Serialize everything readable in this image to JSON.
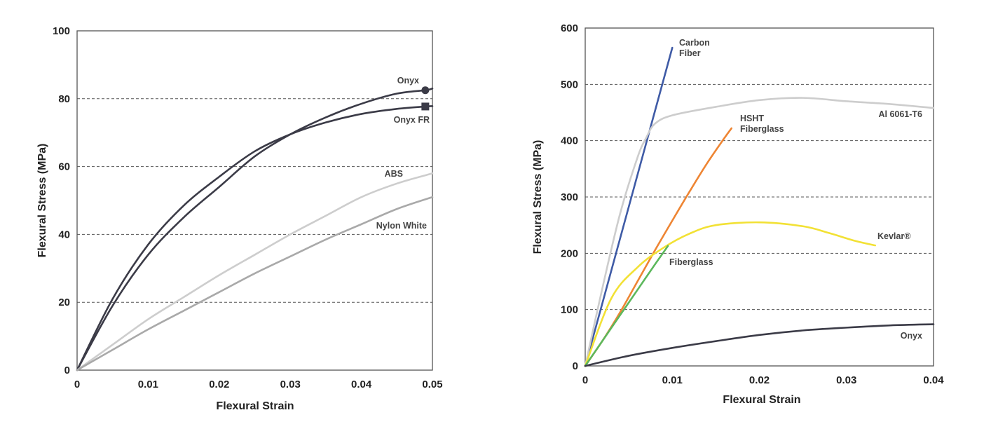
{
  "chart_data": [
    {
      "type": "line",
      "title": "",
      "xlabel": "Flexural Strain",
      "ylabel": "Flexural Stress (MPa)",
      "xlim": [
        0,
        0.05
      ],
      "ylim": [
        0,
        100
      ],
      "xticks": [
        "0",
        "0.01",
        "0.02",
        "0.03",
        "0.04",
        "0.05"
      ],
      "yticks": [
        "0",
        "20",
        "40",
        "60",
        "80",
        "100"
      ],
      "grid": "horizontal dashed",
      "series": [
        {
          "name": "Onyx",
          "color": "#3b3b47",
          "marker": "circle",
          "x": [
            0,
            0.005,
            0.01,
            0.015,
            0.02,
            0.025,
            0.03,
            0.035,
            0.04,
            0.045,
            0.049,
            0.05
          ],
          "y": [
            0,
            19,
            34,
            45,
            54,
            63,
            69.5,
            74.5,
            78.5,
            81.5,
            82.5,
            83
          ]
        },
        {
          "name": "Onyx FR",
          "color": "#3b3b47",
          "marker": "square",
          "x": [
            0,
            0.005,
            0.01,
            0.015,
            0.02,
            0.025,
            0.03,
            0.035,
            0.04,
            0.045,
            0.049,
            0.05
          ],
          "y": [
            0,
            21,
            37,
            48.5,
            57,
            64.5,
            69.5,
            73,
            75.5,
            77,
            77.7,
            77.8
          ]
        },
        {
          "name": "ABS",
          "color": "#cdcdcd",
          "marker": "none",
          "x": [
            0,
            0.005,
            0.01,
            0.015,
            0.02,
            0.025,
            0.03,
            0.035,
            0.04,
            0.045,
            0.05
          ],
          "y": [
            0,
            7.5,
            15,
            21.5,
            28,
            34,
            40,
            45.5,
            51,
            55,
            58
          ]
        },
        {
          "name": "Nylon White",
          "color": "#a9a9a9",
          "marker": "none",
          "x": [
            0,
            0.005,
            0.01,
            0.015,
            0.02,
            0.025,
            0.03,
            0.035,
            0.04,
            0.045,
            0.05
          ],
          "y": [
            0,
            6,
            12,
            17.5,
            23,
            28.5,
            33.5,
            38.5,
            43,
            47.5,
            51
          ]
        }
      ]
    },
    {
      "type": "line",
      "title": "",
      "xlabel": "Flexural Strain",
      "ylabel": "Flexural Stress (MPa)",
      "xlim": [
        0,
        0.04
      ],
      "ylim": [
        0,
        600
      ],
      "xticks": [
        "0",
        "0.01",
        "0.02",
        "0.03",
        "0.04"
      ],
      "yticks": [
        "0",
        "100",
        "200",
        "300",
        "400",
        "500",
        "600"
      ],
      "grid": "horizontal dashed",
      "series": [
        {
          "name": "Carbon Fiber",
          "color": "#3f5ba6",
          "x": [
            0,
            0.002,
            0.004,
            0.006,
            0.008,
            0.01
          ],
          "y": [
            0,
            113,
            226,
            339,
            452,
            565
          ]
        },
        {
          "name": "Al 6061-T6",
          "color": "#cdcdcd",
          "x": [
            0,
            0.002,
            0.004,
            0.006,
            0.007,
            0.008,
            0.01,
            0.015,
            0.02,
            0.025,
            0.03,
            0.035,
            0.04
          ],
          "y": [
            0,
            140,
            270,
            370,
            405,
            430,
            445,
            460,
            472,
            476,
            470,
            465,
            458
          ]
        },
        {
          "name": "HSHT Fiberglass",
          "color": "#ee8533",
          "x": [
            0,
            0.002,
            0.004,
            0.006,
            0.008,
            0.01,
            0.012,
            0.014,
            0.016,
            0.0168
          ],
          "y": [
            0,
            45,
            95,
            150,
            205,
            258,
            310,
            360,
            405,
            422
          ]
        },
        {
          "name": "Kevlar®",
          "color": "#f2e135",
          "x": [
            0,
            0.003,
            0.006,
            0.009,
            0.012,
            0.015,
            0.02,
            0.025,
            0.028,
            0.031,
            0.0333
          ],
          "y": [
            0,
            120,
            175,
            210,
            235,
            250,
            255,
            248,
            236,
            222,
            214
          ]
        },
        {
          "name": "Fiberglass",
          "color": "#5cb85c",
          "x": [
            0,
            0.002,
            0.004,
            0.006,
            0.008,
            0.0095
          ],
          "y": [
            0,
            45,
            90,
            135,
            180,
            213
          ]
        },
        {
          "name": "Onyx",
          "color": "#3b3b47",
          "x": [
            0,
            0.005,
            0.01,
            0.015,
            0.02,
            0.025,
            0.03,
            0.035,
            0.04
          ],
          "y": [
            0,
            18,
            32,
            44,
            55,
            63,
            68,
            72,
            74
          ]
        }
      ]
    }
  ]
}
